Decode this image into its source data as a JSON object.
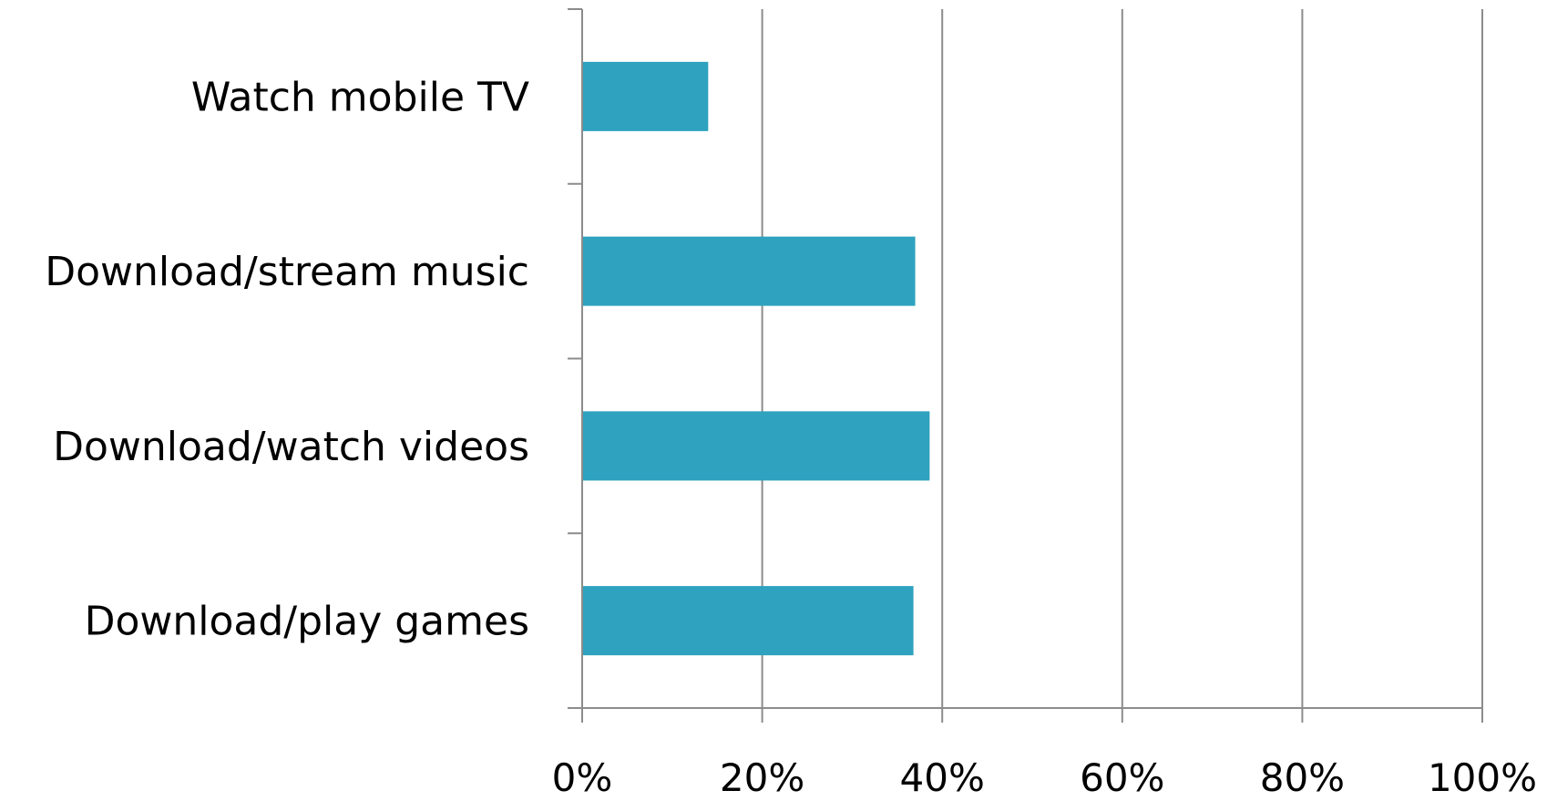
{
  "chart_data": {
    "type": "bar",
    "orientation": "horizontal",
    "categories": [
      "Watch mobile TV",
      "Download/stream music",
      "Download/watch videos",
      "Download/play games"
    ],
    "values": [
      14,
      37,
      38.6,
      36.8
    ],
    "unit": "%",
    "xlim": [
      0,
      100
    ],
    "xticks": [
      "0%",
      "20%",
      "40%",
      "60%",
      "80%",
      "100%"
    ],
    "title": "",
    "xlabel": "",
    "ylabel": "",
    "grid": "vertical",
    "legend": "none",
    "bar_color": "#2ea2be",
    "gridline_color": "#8c8c8c"
  }
}
